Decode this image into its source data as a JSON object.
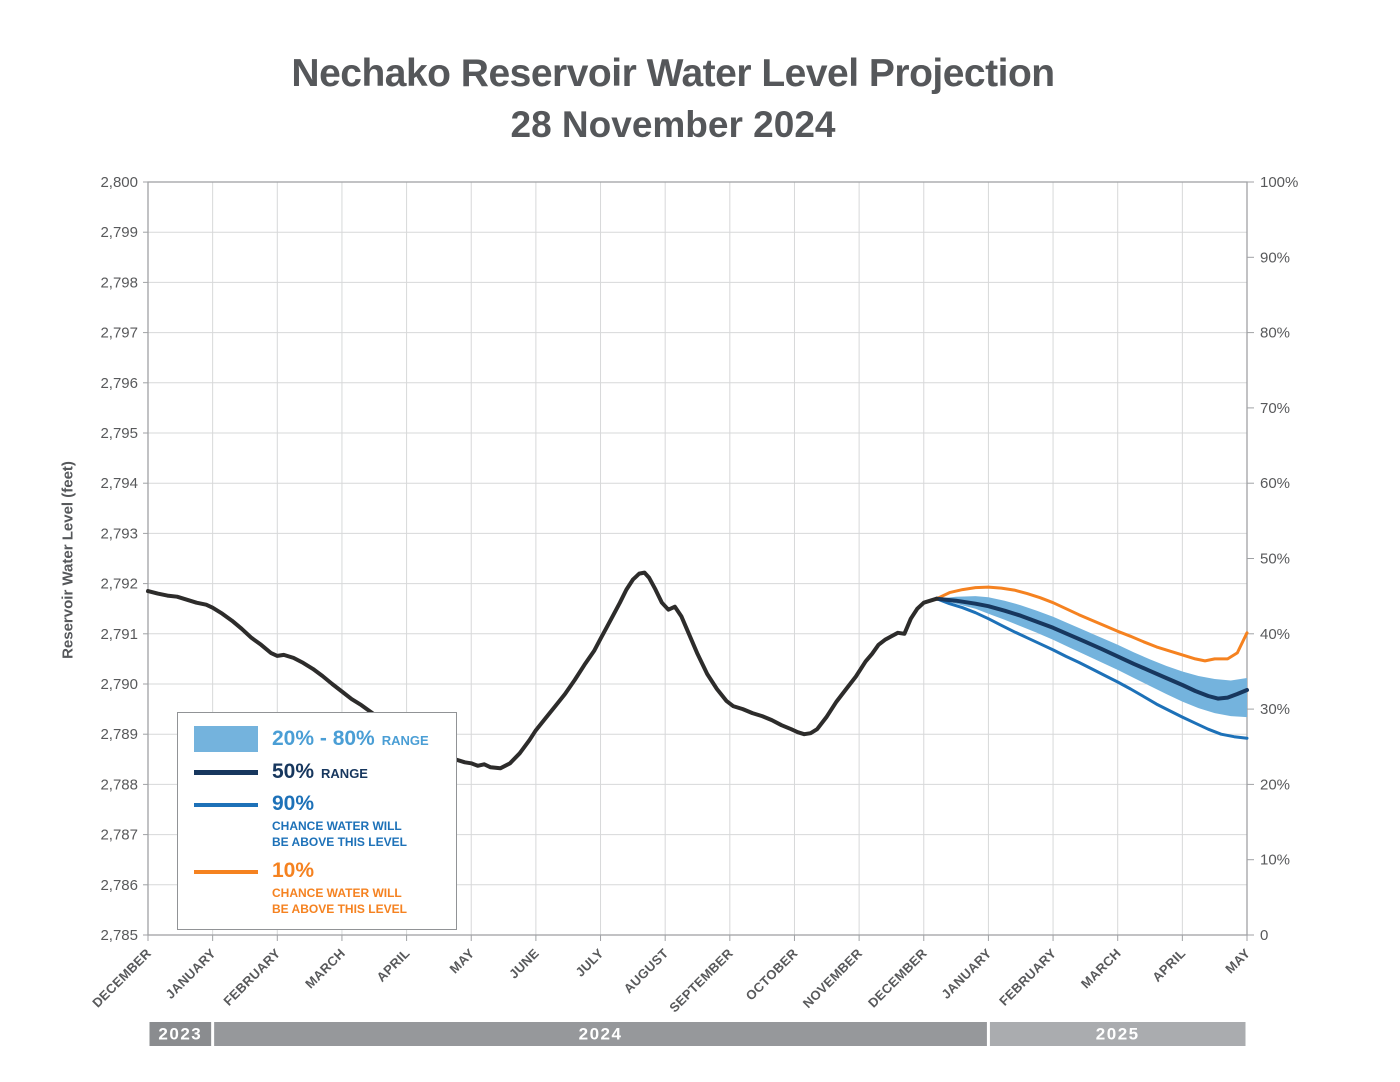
{
  "legend": {
    "range_label": "20% - 80%",
    "range_suffix": "RANGE",
    "p50_label": "50%",
    "p50_suffix": "RANGE",
    "p90_label": "90%",
    "p90_desc_line1": "CHANCE WATER WILL",
    "p90_desc_line2": "BE ABOVE THIS LEVEL",
    "p10_label": "10%",
    "p10_desc_line1": "CHANCE WATER WILL",
    "p10_desc_line2": "BE ABOVE THIS LEVEL"
  },
  "chart_data": {
    "type": "line",
    "title": "Nechako Reservoir Water Level Projection",
    "subtitle": "28 November 2024",
    "ylabel_left": "Reservoir Water Level (feet)",
    "y_left": {
      "min": 2785,
      "max": 2800,
      "tick_step": 1,
      "tick_labels": [
        "2,785",
        "2,786",
        "2,787",
        "2,788",
        "2,789",
        "2,790",
        "2,791",
        "2,792",
        "2,793",
        "2,794",
        "2,795",
        "2,796",
        "2,797",
        "2,798",
        "2,799",
        "2,800"
      ]
    },
    "y_right": {
      "min": 0,
      "max": 100,
      "tick_step": 10,
      "tick_labels": [
        "0",
        "10%",
        "20%",
        "30%",
        "40%",
        "50%",
        "60%",
        "70%",
        "80%",
        "90%",
        "100%"
      ]
    },
    "x_axis": {
      "min": 0,
      "max": 17,
      "unit": "month",
      "tick_labels": [
        "DECEMBER",
        "JANUARY",
        "FEBRUARY",
        "MARCH",
        "APRIL",
        "MAY",
        "JUNE",
        "JULY",
        "AUGUST",
        "SEPTEMBER",
        "OCTOBER",
        "NOVEMBER",
        "DECEMBER",
        "JANUARY",
        "FEBRUARY",
        "MARCH",
        "APRIL",
        "MAY"
      ]
    },
    "year_bands": [
      {
        "label": "2023",
        "start": 0,
        "end": 1,
        "color": "#8a8c8f"
      },
      {
        "label": "2024",
        "start": 1,
        "end": 13,
        "color": "#96989b"
      },
      {
        "label": "2025",
        "start": 13,
        "end": 17,
        "color": "#aaacaf"
      }
    ],
    "style": {
      "grid": "#d7d8d9",
      "axis": "#a0a2a5",
      "text": "#58595b"
    },
    "series": [
      {
        "id": "range_20_80",
        "name": "20% - 80% RANGE",
        "type": "band",
        "color": "#74b3dd",
        "upper": [
          [
            12.2,
            2791.7
          ],
          [
            12.5,
            2791.74
          ],
          [
            12.8,
            2791.75
          ],
          [
            13,
            2791.73
          ],
          [
            13.25,
            2791.66
          ],
          [
            13.5,
            2791.57
          ],
          [
            13.75,
            2791.46
          ],
          [
            14,
            2791.34
          ],
          [
            14.25,
            2791.2
          ],
          [
            14.5,
            2791.06
          ],
          [
            14.75,
            2790.92
          ],
          [
            15,
            2790.78
          ],
          [
            15.25,
            2790.63
          ],
          [
            15.5,
            2790.49
          ],
          [
            15.75,
            2790.36
          ],
          [
            16,
            2790.25
          ],
          [
            16.25,
            2790.16
          ],
          [
            16.5,
            2790.1
          ],
          [
            16.75,
            2790.07
          ],
          [
            17,
            2790.12
          ]
        ],
        "lower": [
          [
            12.2,
            2791.7
          ],
          [
            12.5,
            2791.6
          ],
          [
            12.8,
            2791.5
          ],
          [
            13,
            2791.4
          ],
          [
            13.25,
            2791.28
          ],
          [
            13.5,
            2791.15
          ],
          [
            13.75,
            2791.02
          ],
          [
            14,
            2790.88
          ],
          [
            14.25,
            2790.73
          ],
          [
            14.5,
            2790.58
          ],
          [
            14.75,
            2790.43
          ],
          [
            15,
            2790.28
          ],
          [
            15.25,
            2790.12
          ],
          [
            15.5,
            2789.96
          ],
          [
            15.75,
            2789.8
          ],
          [
            16,
            2789.65
          ],
          [
            16.25,
            2789.52
          ],
          [
            16.5,
            2789.42
          ],
          [
            16.75,
            2789.36
          ],
          [
            17,
            2789.34
          ]
        ]
      },
      {
        "id": "p10",
        "name": "10% CHANCE WATER WILL BE ABOVE THIS LEVEL",
        "type": "line",
        "color": "#f58220",
        "width": 3,
        "points": [
          [
            12.2,
            2791.7
          ],
          [
            12.4,
            2791.82
          ],
          [
            12.6,
            2791.88
          ],
          [
            12.8,
            2791.92
          ],
          [
            13,
            2791.93
          ],
          [
            13.2,
            2791.91
          ],
          [
            13.4,
            2791.87
          ],
          [
            13.6,
            2791.8
          ],
          [
            13.8,
            2791.72
          ],
          [
            14,
            2791.62
          ],
          [
            14.2,
            2791.5
          ],
          [
            14.4,
            2791.38
          ],
          [
            14.6,
            2791.27
          ],
          [
            14.8,
            2791.16
          ],
          [
            15,
            2791.05
          ],
          [
            15.2,
            2790.95
          ],
          [
            15.4,
            2790.84
          ],
          [
            15.6,
            2790.74
          ],
          [
            15.8,
            2790.66
          ],
          [
            16,
            2790.58
          ],
          [
            16.2,
            2790.5
          ],
          [
            16.35,
            2790.46
          ],
          [
            16.5,
            2790.5
          ],
          [
            16.7,
            2790.5
          ],
          [
            16.85,
            2790.62
          ],
          [
            17,
            2791.02
          ]
        ]
      },
      {
        "id": "p90",
        "name": "90% CHANCE WATER WILL BE ABOVE THIS LEVEL",
        "type": "line",
        "color": "#1d71b8",
        "width": 3,
        "points": [
          [
            12.2,
            2791.7
          ],
          [
            12.4,
            2791.6
          ],
          [
            12.6,
            2791.52
          ],
          [
            12.8,
            2791.42
          ],
          [
            13,
            2791.3
          ],
          [
            13.2,
            2791.17
          ],
          [
            13.4,
            2791.04
          ],
          [
            13.6,
            2790.92
          ],
          [
            13.8,
            2790.8
          ],
          [
            14,
            2790.68
          ],
          [
            14.2,
            2790.55
          ],
          [
            14.4,
            2790.43
          ],
          [
            14.6,
            2790.3
          ],
          [
            14.8,
            2790.17
          ],
          [
            15,
            2790.04
          ],
          [
            15.2,
            2789.9
          ],
          [
            15.4,
            2789.75
          ],
          [
            15.6,
            2789.6
          ],
          [
            15.8,
            2789.47
          ],
          [
            16,
            2789.34
          ],
          [
            16.2,
            2789.22
          ],
          [
            16.4,
            2789.1
          ],
          [
            16.6,
            2789.0
          ],
          [
            16.8,
            2788.95
          ],
          [
            17,
            2788.92
          ]
        ]
      },
      {
        "id": "p50",
        "name": "50% RANGE",
        "type": "line",
        "color": "#17375e",
        "width": 4,
        "points": [
          [
            12.2,
            2791.7
          ],
          [
            12.5,
            2791.66
          ],
          [
            12.8,
            2791.6
          ],
          [
            13,
            2791.55
          ],
          [
            13.25,
            2791.46
          ],
          [
            13.5,
            2791.36
          ],
          [
            13.75,
            2791.24
          ],
          [
            14,
            2791.12
          ],
          [
            14.25,
            2790.98
          ],
          [
            14.5,
            2790.84
          ],
          [
            14.75,
            2790.7
          ],
          [
            15,
            2790.55
          ],
          [
            15.25,
            2790.4
          ],
          [
            15.5,
            2790.26
          ],
          [
            15.75,
            2790.12
          ],
          [
            16,
            2789.98
          ],
          [
            16.2,
            2789.86
          ],
          [
            16.4,
            2789.76
          ],
          [
            16.55,
            2789.71
          ],
          [
            16.7,
            2789.73
          ],
          [
            16.85,
            2789.8
          ],
          [
            17,
            2789.88
          ]
        ]
      },
      {
        "id": "historical",
        "name": "Observed water level",
        "type": "line",
        "color": "#2d2c2b",
        "width": 4,
        "points": [
          [
            0,
            2791.85
          ],
          [
            0.15,
            2791.8
          ],
          [
            0.3,
            2791.76
          ],
          [
            0.45,
            2791.74
          ],
          [
            0.6,
            2791.68
          ],
          [
            0.75,
            2791.62
          ],
          [
            0.9,
            2791.58
          ],
          [
            1,
            2791.52
          ],
          [
            1.15,
            2791.4
          ],
          [
            1.3,
            2791.26
          ],
          [
            1.45,
            2791.1
          ],
          [
            1.6,
            2790.92
          ],
          [
            1.75,
            2790.78
          ],
          [
            1.9,
            2790.62
          ],
          [
            2,
            2790.56
          ],
          [
            2.1,
            2790.58
          ],
          [
            2.25,
            2790.52
          ],
          [
            2.4,
            2790.42
          ],
          [
            2.55,
            2790.3
          ],
          [
            2.7,
            2790.16
          ],
          [
            2.85,
            2790.0
          ],
          [
            3,
            2789.85
          ],
          [
            3.15,
            2789.7
          ],
          [
            3.3,
            2789.58
          ],
          [
            3.45,
            2789.44
          ],
          [
            3.6,
            2789.3
          ],
          [
            3.75,
            2789.16
          ],
          [
            3.9,
            2789.04
          ],
          [
            4,
            2788.96
          ],
          [
            4.15,
            2788.82
          ],
          [
            4.3,
            2788.7
          ],
          [
            4.45,
            2788.6
          ],
          [
            4.6,
            2788.54
          ],
          [
            4.75,
            2788.5
          ],
          [
            4.9,
            2788.44
          ],
          [
            5,
            2788.42
          ],
          [
            5.1,
            2788.37
          ],
          [
            5.2,
            2788.4
          ],
          [
            5.3,
            2788.34
          ],
          [
            5.45,
            2788.32
          ],
          [
            5.6,
            2788.42
          ],
          [
            5.75,
            2788.62
          ],
          [
            5.9,
            2788.88
          ],
          [
            6,
            2789.08
          ],
          [
            6.15,
            2789.32
          ],
          [
            6.3,
            2789.56
          ],
          [
            6.45,
            2789.8
          ],
          [
            6.6,
            2790.08
          ],
          [
            6.75,
            2790.38
          ],
          [
            6.9,
            2790.66
          ],
          [
            7,
            2790.9
          ],
          [
            7.1,
            2791.14
          ],
          [
            7.2,
            2791.38
          ],
          [
            7.3,
            2791.62
          ],
          [
            7.4,
            2791.88
          ],
          [
            7.5,
            2792.08
          ],
          [
            7.6,
            2792.2
          ],
          [
            7.68,
            2792.22
          ],
          [
            7.75,
            2792.12
          ],
          [
            7.85,
            2791.88
          ],
          [
            7.95,
            2791.62
          ],
          [
            8.05,
            2791.48
          ],
          [
            8.15,
            2791.54
          ],
          [
            8.25,
            2791.35
          ],
          [
            8.35,
            2791.05
          ],
          [
            8.5,
            2790.6
          ],
          [
            8.65,
            2790.2
          ],
          [
            8.8,
            2789.9
          ],
          [
            8.95,
            2789.66
          ],
          [
            9.05,
            2789.56
          ],
          [
            9.2,
            2789.5
          ],
          [
            9.35,
            2789.42
          ],
          [
            9.5,
            2789.36
          ],
          [
            9.65,
            2789.28
          ],
          [
            9.8,
            2789.18
          ],
          [
            9.95,
            2789.1
          ],
          [
            10.05,
            2789.04
          ],
          [
            10.15,
            2789.0
          ],
          [
            10.25,
            2789.02
          ],
          [
            10.35,
            2789.1
          ],
          [
            10.5,
            2789.35
          ],
          [
            10.65,
            2789.65
          ],
          [
            10.8,
            2789.9
          ],
          [
            10.95,
            2790.15
          ],
          [
            11.1,
            2790.45
          ],
          [
            11.2,
            2790.6
          ],
          [
            11.3,
            2790.78
          ],
          [
            11.4,
            2790.88
          ],
          [
            11.5,
            2790.95
          ],
          [
            11.6,
            2791.02
          ],
          [
            11.7,
            2791.0
          ],
          [
            11.8,
            2791.3
          ],
          [
            11.9,
            2791.5
          ],
          [
            12,
            2791.62
          ],
          [
            12.1,
            2791.66
          ],
          [
            12.2,
            2791.7
          ]
        ]
      }
    ]
  }
}
